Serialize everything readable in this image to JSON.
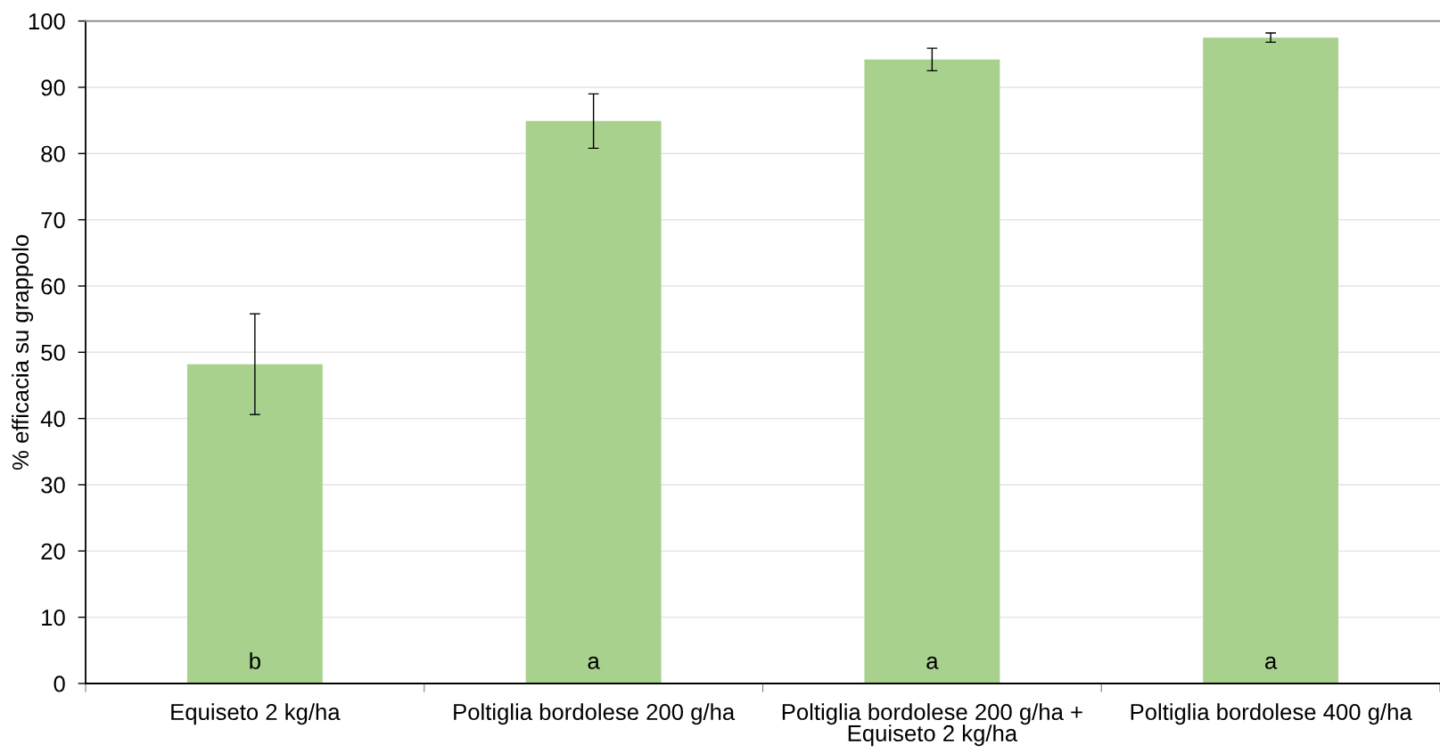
{
  "chart_data": {
    "type": "bar",
    "ylabel": "% efficacia su grappolo",
    "categories": [
      "Equiseto 2 kg/ha",
      "Poltiglia bordolese 200 g/ha",
      "Poltiglia bordolese 200 g/ha + Equiseto 2 kg/ha",
      "Poltiglia bordolese 400 g/ha"
    ],
    "values": [
      48.2,
      84.9,
      94.2,
      97.5
    ],
    "errors": [
      7.6,
      4.1,
      1.7,
      0.7
    ],
    "color": "#a9d18e",
    "ylim": [
      0,
      100
    ],
    "yticks": [
      0,
      10,
      20,
      30,
      40,
      50,
      60,
      70,
      80,
      90,
      100
    ],
    "grid": "y",
    "annotations": [
      "b",
      "a",
      "a",
      "a"
    ]
  }
}
